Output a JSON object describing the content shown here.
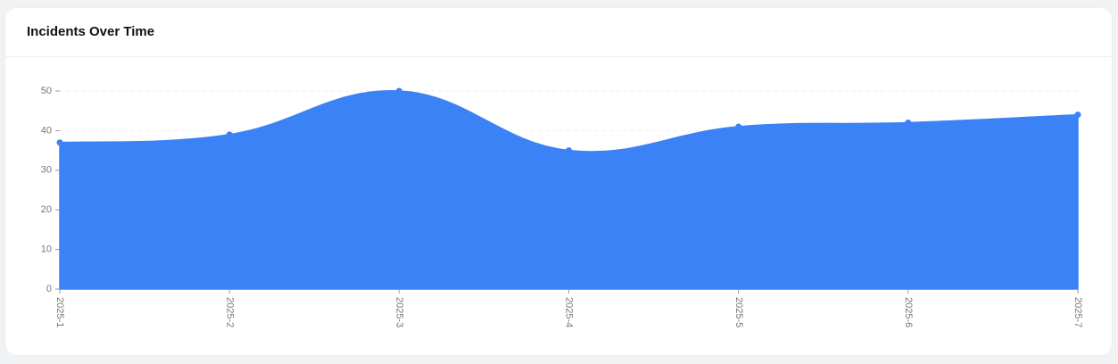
{
  "chart_data": {
    "type": "area",
    "title": "Incidents Over Time",
    "categories": [
      "2025-1",
      "2025-2",
      "2025-3",
      "2025-4",
      "2025-5",
      "2025-6",
      "2025-7"
    ],
    "values": [
      37,
      39,
      50,
      35,
      41,
      42,
      44
    ],
    "color": "#3b82f6",
    "ylim": [
      0,
      50
    ],
    "yticks": [
      0,
      10,
      20,
      30,
      40,
      50
    ],
    "grid": true
  }
}
